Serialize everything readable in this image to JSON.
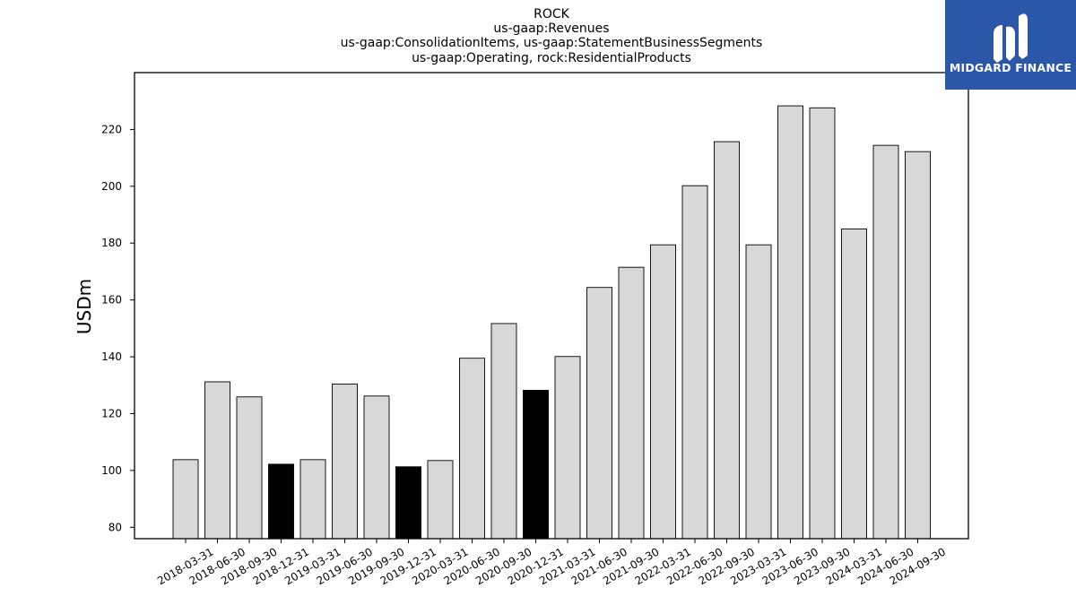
{
  "chart_data": {
    "type": "bar",
    "title_lines": [
      "ROCK",
      "us-gaap:Revenues",
      "us-gaap:ConsolidationItems, us-gaap:StatementBusinessSegments",
      "us-gaap:Operating, rock:ResidentialProducts"
    ],
    "xlabel": "",
    "ylabel": "USDm",
    "ylim": [
      76,
      240
    ],
    "yticks": [
      80,
      100,
      120,
      140,
      160,
      180,
      200,
      220
    ],
    "categories": [
      "2018-03-31",
      "2018-06-30",
      "2018-09-30",
      "2018-12-31",
      "2019-03-31",
      "2019-06-30",
      "2019-09-30",
      "2019-12-31",
      "2020-03-31",
      "2020-06-30",
      "2020-09-30",
      "2020-12-31",
      "2021-03-31",
      "2021-06-30",
      "2021-09-30",
      "2022-03-31",
      "2022-06-30",
      "2022-09-30",
      "2023-03-31",
      "2023-06-30",
      "2023-09-30",
      "2024-03-31",
      "2024-06-30",
      "2024-09-30"
    ],
    "values": [
      103.8,
      131.2,
      125.9,
      102.2,
      103.8,
      130.4,
      126.2,
      101.3,
      103.5,
      139.5,
      151.7,
      128.2,
      140.1,
      164.4,
      171.5,
      179.4,
      200.2,
      215.7,
      179.4,
      228.3,
      227.6,
      185.0,
      214.4,
      212.2
    ],
    "highlighted": [
      "2018-12-31",
      "2019-12-31",
      "2020-12-31"
    ],
    "colors": {
      "bar": "#d8d8d8",
      "highlight": "#000000",
      "edge": "#000000"
    },
    "grid": false,
    "legend": "none"
  },
  "logo": {
    "text": "MIDGARD FINANCE",
    "icon": "midgard-logo-icon",
    "background": "#2b57a8"
  }
}
